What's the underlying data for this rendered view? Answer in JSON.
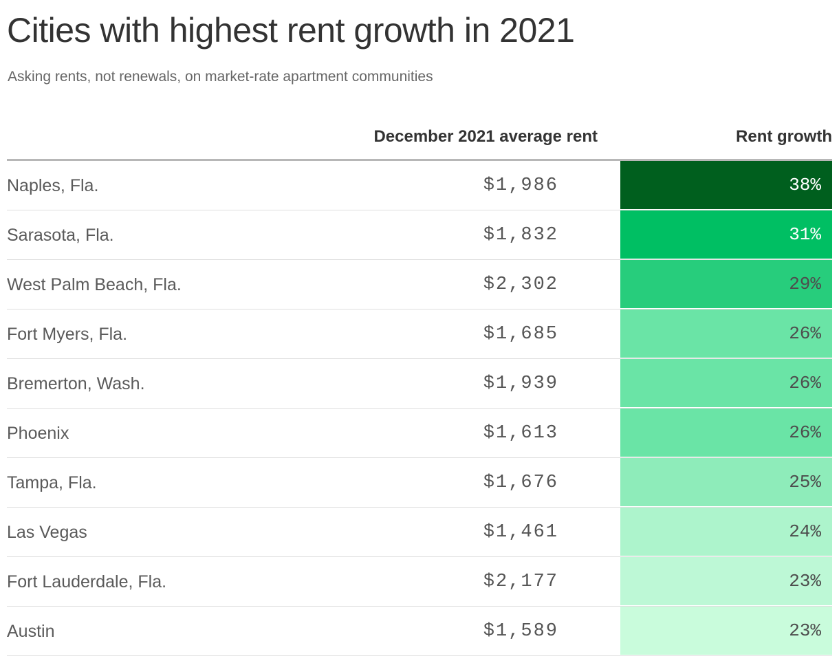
{
  "title": "Cities with highest rent growth in 2021",
  "subtitle": "Asking rents, not renewals, on market-rate apartment communities",
  "columns": {
    "city": "",
    "rent": "December 2021 average rent",
    "growth": "Rent growth"
  },
  "rows": [
    {
      "city": "Naples, Fla.",
      "rent": "$1,986",
      "growth": "38%",
      "fill": "#005f1e",
      "text_color": "#ffffff"
    },
    {
      "city": "Sarasota, Fla.",
      "rent": "$1,832",
      "growth": "31%",
      "fill": "#00bf63",
      "text_color": "#ffffff"
    },
    {
      "city": "West Palm Beach, Fla.",
      "rent": "$2,302",
      "growth": "29%",
      "fill": "#27cd7c",
      "text_color": "#4d4d4d"
    },
    {
      "city": "Fort Myers, Fla.",
      "rent": "$1,685",
      "growth": "26%",
      "fill": "#6ae4a6",
      "text_color": "#4d4d4d"
    },
    {
      "city": "Bremerton, Wash.",
      "rent": "$1,939",
      "growth": "26%",
      "fill": "#6ae4a6",
      "text_color": "#4d4d4d"
    },
    {
      "city": "Phoenix",
      "rent": "$1,613",
      "growth": "26%",
      "fill": "#6ae4a6",
      "text_color": "#4d4d4d"
    },
    {
      "city": "Tampa, Fla.",
      "rent": "$1,676",
      "growth": "25%",
      "fill": "#8eecba",
      "text_color": "#4d4d4d"
    },
    {
      "city": "Las Vegas",
      "rent": "$1,461",
      "growth": "24%",
      "fill": "#adf4cc",
      "text_color": "#4d4d4d"
    },
    {
      "city": "Fort Lauderdale, Fla.",
      "rent": "$2,177",
      "growth": "23%",
      "fill": "#bdf8d6",
      "text_color": "#4d4d4d"
    },
    {
      "city": "Austin",
      "rent": "$1,589",
      "growth": "23%",
      "fill": "#c9fcdc",
      "text_color": "#4d4d4d"
    }
  ],
  "chart_data": {
    "type": "table",
    "title": "Cities with highest rent growth in 2021",
    "subtitle": "Asking rents, not renewals, on market-rate apartment communities",
    "columns": [
      "",
      "December 2021 average rent",
      "Rent growth"
    ],
    "categories": [
      "Naples, Fla.",
      "Sarasota, Fla.",
      "West Palm Beach, Fla.",
      "Fort Myers, Fla.",
      "Bremerton, Wash.",
      "Phoenix",
      "Tampa, Fla.",
      "Las Vegas",
      "Fort Lauderdale, Fla.",
      "Austin"
    ],
    "series": [
      {
        "name": "December 2021 average rent",
        "values": [
          1986,
          1832,
          2302,
          1685,
          1939,
          1613,
          1676,
          1461,
          2177,
          1589
        ]
      },
      {
        "name": "Rent growth",
        "values": [
          38,
          31,
          29,
          26,
          26,
          26,
          25,
          24,
          23,
          23
        ]
      }
    ]
  }
}
